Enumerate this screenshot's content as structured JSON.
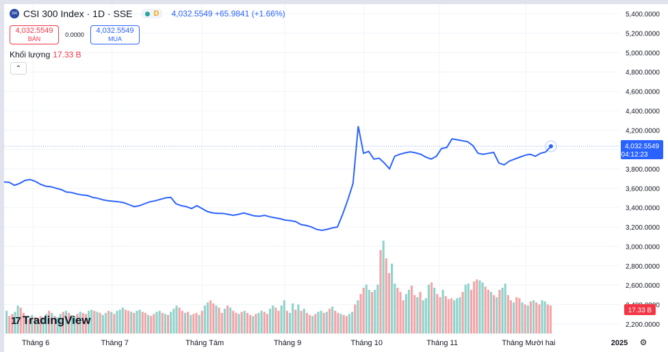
{
  "header": {
    "logo_text": "300",
    "symbol": "CSI 300 Index · 1D · SSE",
    "status_letter": "D",
    "quote": "4,032.5549 +65.9841 (+1.66%)"
  },
  "trade": {
    "sell_price": "4,032.5549",
    "sell_label": "BÁN",
    "spread": "0.0000",
    "buy_price": "4,032.5549",
    "buy_label": "MUA"
  },
  "volume_legend": {
    "label": "Khối lượng",
    "value": "17.33 B"
  },
  "brand": {
    "name": "TradingView",
    "mark": "17"
  },
  "collapse_icon": "chevron-up-icon",
  "settings_icon": "gear-icon",
  "colors": {
    "line": "#2962ff",
    "vol_up": "#8fd3cb",
    "vol_down": "#f5a3a7",
    "price_label": "#2962ff",
    "vol_label": "#f23645"
  },
  "chart_data": {
    "type": "line",
    "title": "",
    "ylim": [
      2100,
      5500
    ],
    "y_ticks": [
      5400,
      5200,
      5000,
      4800,
      4600,
      4400,
      4200,
      4000,
      3800,
      3600,
      3400,
      3200,
      3000,
      2800,
      2600,
      2400,
      2200
    ],
    "y_tick_labels": [
      "5,400.0000",
      "5,200.0000",
      "5,000.0000",
      "4,800.0000",
      "4,600.0000",
      "4,400.0000",
      "4,200.0000",
      "4,000.0000",
      "3,800.0000",
      "3,600.0000",
      "3,400.0000",
      "3,200.0000",
      "3,000.0000",
      "2,800.0000",
      "2,600.0000",
      "2,400.0000",
      "2,200.0000"
    ],
    "x_labels": [
      "Tháng 6",
      "Tháng 7",
      "Tháng Tám",
      "Tháng 9",
      "Tháng 10",
      "Tháng 11",
      "Tháng Mười hai",
      "2025"
    ],
    "x_label_positions": [
      8,
      30,
      55,
      78,
      100,
      121,
      145,
      171
    ],
    "n_periods": 171,
    "price_series": [
      [
        0,
        3665
      ],
      [
        2,
        3660
      ],
      [
        4,
        3630
      ],
      [
        6,
        3650
      ],
      [
        8,
        3680
      ],
      [
        10,
        3690
      ],
      [
        12,
        3670
      ],
      [
        14,
        3640
      ],
      [
        16,
        3620
      ],
      [
        18,
        3615
      ],
      [
        20,
        3600
      ],
      [
        22,
        3585
      ],
      [
        24,
        3560
      ],
      [
        26,
        3555
      ],
      [
        28,
        3540
      ],
      [
        30,
        3530
      ],
      [
        32,
        3525
      ],
      [
        34,
        3505
      ],
      [
        36,
        3495
      ],
      [
        38,
        3480
      ],
      [
        40,
        3470
      ],
      [
        42,
        3465
      ],
      [
        44,
        3460
      ],
      [
        46,
        3450
      ],
      [
        48,
        3430
      ],
      [
        50,
        3410
      ],
      [
        52,
        3420
      ],
      [
        54,
        3440
      ],
      [
        56,
        3460
      ],
      [
        58,
        3470
      ],
      [
        60,
        3485
      ],
      [
        62,
        3500
      ],
      [
        64,
        3505
      ],
      [
        66,
        3440
      ],
      [
        68,
        3420
      ],
      [
        70,
        3410
      ],
      [
        72,
        3390
      ],
      [
        74,
        3420
      ],
      [
        76,
        3390
      ],
      [
        78,
        3360
      ],
      [
        80,
        3345
      ],
      [
        82,
        3340
      ],
      [
        84,
        3340
      ],
      [
        86,
        3330
      ],
      [
        88,
        3320
      ],
      [
        90,
        3330
      ],
      [
        92,
        3345
      ],
      [
        94,
        3330
      ],
      [
        96,
        3315
      ],
      [
        98,
        3310
      ],
      [
        100,
        3320
      ],
      [
        102,
        3305
      ],
      [
        104,
        3295
      ],
      [
        106,
        3285
      ],
      [
        108,
        3270
      ],
      [
        110,
        3265
      ],
      [
        112,
        3255
      ],
      [
        114,
        3225
      ],
      [
        116,
        3215
      ],
      [
        118,
        3200
      ],
      [
        120,
        3175
      ],
      [
        122,
        3165
      ],
      [
        124,
        3175
      ],
      [
        126,
        3190
      ],
      [
        128,
        3200
      ],
      [
        130,
        3330
      ],
      [
        132,
        3480
      ],
      [
        134,
        3650
      ],
      [
        136,
        4240
      ],
      [
        138,
        3960
      ],
      [
        140,
        3980
      ],
      [
        142,
        3900
      ],
      [
        144,
        3910
      ],
      [
        146,
        3860
      ],
      [
        148,
        3800
      ],
      [
        150,
        3930
      ],
      [
        152,
        3950
      ],
      [
        154,
        3965
      ],
      [
        156,
        3975
      ],
      [
        158,
        3965
      ],
      [
        160,
        3950
      ],
      [
        162,
        3920
      ],
      [
        164,
        3900
      ],
      [
        166,
        3930
      ],
      [
        168,
        4010
      ],
      [
        170,
        4020
      ],
      [
        172,
        4110
      ],
      [
        174,
        4100
      ],
      [
        176,
        4090
      ],
      [
        178,
        4080
      ],
      [
        180,
        4040
      ],
      [
        182,
        3960
      ],
      [
        184,
        3950
      ],
      [
        186,
        3960
      ],
      [
        188,
        3970
      ],
      [
        190,
        3860
      ],
      [
        192,
        3840
      ],
      [
        194,
        3880
      ],
      [
        196,
        3900
      ],
      [
        198,
        3920
      ],
      [
        200,
        3940
      ],
      [
        202,
        3950
      ],
      [
        204,
        3930
      ],
      [
        206,
        3960
      ],
      [
        208,
        3975
      ],
      [
        210,
        4032.5549
      ]
    ],
    "last_value": 4032.5549,
    "last_value_label": "4,032.5549",
    "countdown": "04:12:23",
    "volume_last_label": "17.33 B",
    "volume_series": [
      2200,
      2150,
      2170,
      2190,
      2250,
      2230,
      2180,
      2150,
      2120,
      2160,
      2140,
      2130,
      2150,
      2140,
      2170,
      2200,
      2180,
      2150,
      2140,
      2170,
      2190,
      2200,
      2180,
      2160,
      2150,
      2170,
      2190,
      2180,
      2170,
      2200,
      2210,
      2200,
      2190,
      2180,
      2160,
      2180,
      2200,
      2190,
      2170,
      2200,
      2210,
      2230,
      2210,
      2200,
      2190,
      2180,
      2200,
      2210,
      2190,
      2180,
      2160,
      2150,
      2170,
      2190,
      2200,
      2180,
      2170,
      2160,
      2190,
      2220,
      2250,
      2230,
      2200,
      2180,
      2190,
      2160,
      2170,
      2180,
      2160,
      2200,
      2250,
      2280,
      2300,
      2270,
      2250,
      2230,
      2180,
      2220,
      2250,
      2230,
      2200,
      2180,
      2170,
      2190,
      2200,
      2180,
      2160,
      2150,
      2170,
      2180,
      2200,
      2190,
      2170,
      2220,
      2250,
      2230,
      2200,
      2250,
      2300,
      2200,
      2180,
      2270,
      2210,
      2260,
      2200,
      2220,
      2180,
      2160,
      2150,
      2170,
      2190,
      2200,
      2180,
      2190,
      2220,
      2240,
      2200,
      2180,
      2170,
      2160,
      2150,
      2170,
      2190,
      2260,
      2300,
      2360,
      2420,
      2450,
      2400,
      2380,
      2400,
      2450,
      2780,
      2870,
      2700,
      2560,
      2650,
      2460,
      2420,
      2380,
      2300,
      2360,
      2400,
      2440,
      2350,
      2330,
      2380,
      2300,
      2320,
      2450,
      2470,
      2420,
      2360,
      2330,
      2400,
      2340,
      2310,
      2320,
      2300,
      2320,
      2330,
      2380,
      2450,
      2460,
      2400,
      2480,
      2500,
      2490,
      2470,
      2430,
      2400,
      2380,
      2350,
      2330,
      2400,
      2420,
      2460,
      2350,
      2300,
      2280,
      2330,
      2320,
      2280,
      2260,
      2250,
      2290,
      2300,
      2280,
      2260,
      2300,
      2290,
      2260,
      2250
    ],
    "volume_up_flags": [
      1,
      0,
      0,
      1,
      1,
      0,
      0,
      1,
      0,
      1,
      0,
      1,
      0,
      1,
      1,
      0,
      1,
      0,
      1,
      1,
      0,
      1,
      0,
      1,
      1,
      0,
      1,
      0,
      0,
      1,
      1,
      0,
      1,
      0,
      1,
      1,
      0,
      1,
      0,
      1,
      1,
      1,
      0,
      0,
      1,
      0,
      1,
      1,
      0,
      0,
      1,
      0,
      0,
      1,
      1,
      0,
      1,
      0,
      1,
      1,
      1,
      0,
      0,
      1,
      0,
      1,
      0,
      0,
      1,
      0,
      1,
      1,
      0,
      0,
      1,
      0,
      0,
      1,
      0,
      1,
      0,
      0,
      1,
      0,
      1,
      0,
      0,
      1,
      0,
      1,
      1,
      0,
      0,
      1,
      1,
      0,
      0,
      1,
      1,
      0,
      1,
      1,
      0,
      1,
      0,
      1,
      0,
      0,
      1,
      0,
      1,
      1,
      0,
      1,
      0,
      1,
      0,
      0,
      1,
      0,
      0,
      1,
      1,
      0,
      1,
      0,
      0,
      1,
      1,
      0,
      1,
      1,
      0,
      1,
      0,
      0,
      1,
      1,
      0,
      0,
      0,
      1,
      1,
      0,
      0,
      1,
      0,
      1,
      1,
      1,
      0,
      1,
      0,
      0,
      1,
      0,
      0,
      0,
      1,
      1,
      1,
      0,
      1,
      1,
      0,
      0,
      0,
      1,
      1,
      0,
      0,
      1,
      0,
      1,
      0,
      1,
      1,
      0,
      0,
      1,
      0,
      0,
      1,
      0,
      1,
      0
    ]
  }
}
